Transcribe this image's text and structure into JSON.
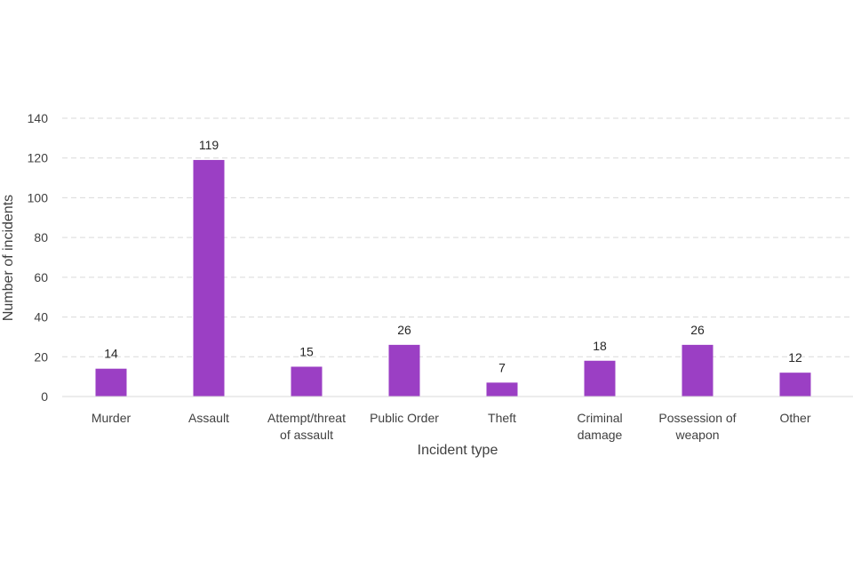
{
  "chart_data": {
    "type": "bar",
    "categories": [
      [
        "Murder"
      ],
      [
        "Assault"
      ],
      [
        "Attempt/threat",
        "of assault"
      ],
      [
        "Public Order"
      ],
      [
        "Theft"
      ],
      [
        "Criminal",
        "damage"
      ],
      [
        "Possession of",
        "weapon"
      ],
      [
        "Other"
      ]
    ],
    "values": [
      14,
      119,
      15,
      26,
      7,
      18,
      26,
      12
    ],
    "title": "",
    "xlabel": "Incident type",
    "ylabel": "Number of incidents",
    "ylim": [
      0,
      140
    ],
    "yticks": [
      0,
      20,
      40,
      60,
      80,
      100,
      120,
      140
    ],
    "grid": true,
    "bar_color": "#9b3fc4",
    "data_labels": true
  }
}
